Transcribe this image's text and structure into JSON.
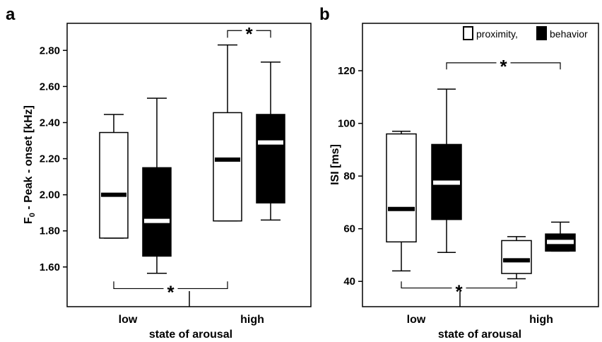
{
  "chart_data": [
    {
      "panel": "a",
      "type": "box",
      "ylabel_main": "F",
      "ylabel_sub": "0",
      "ylabel_rest": " - Peak - onset [kHz]",
      "xlabel": "state of arousal",
      "ylim": [
        1.38,
        2.95
      ],
      "yticks": [
        "1.60",
        "1.80",
        "2.00",
        "2.20",
        "2.40",
        "2.60",
        "2.80"
      ],
      "categories": [
        "low",
        "high"
      ],
      "series": [
        {
          "name": "proximity",
          "fill": "#ffffff",
          "median_color": "#000000",
          "boxes": [
            {
              "category": "low",
              "min": 1.76,
              "q1": 1.76,
              "median": 2.0,
              "q3": 2.345,
              "max": 2.445
            },
            {
              "category": "high",
              "min": 1.855,
              "q1": 1.855,
              "median": 2.195,
              "q3": 2.455,
              "max": 2.83
            }
          ]
        },
        {
          "name": "behavior",
          "fill": "#000000",
          "median_color": "#ffffff",
          "boxes": [
            {
              "category": "low",
              "min": 1.565,
              "q1": 1.66,
              "median": 1.855,
              "q3": 2.15,
              "max": 2.535
            },
            {
              "category": "high",
              "min": 1.86,
              "q1": 1.955,
              "median": 2.29,
              "q3": 2.445,
              "max": 2.735
            }
          ]
        }
      ],
      "significance": [
        {
          "label": "*",
          "from_box": 2,
          "to_box": 3,
          "at": 2.91,
          "tip": 2.87
        },
        {
          "label": "*",
          "from_box": 0,
          "to_box": 2,
          "at": 1.48,
          "tip": 1.52
        }
      ]
    },
    {
      "panel": "b",
      "type": "box",
      "ylabel": "ISI [ms]",
      "xlabel": "state of arousal",
      "ylim": [
        30.4,
        138
      ],
      "yticks": [
        "40",
        "60",
        "80",
        "100",
        "120"
      ],
      "categories": [
        "low",
        "high"
      ],
      "legend": {
        "position": "top-right",
        "items": [
          {
            "label": "proximity,",
            "fill": "#ffffff"
          },
          {
            "label": "behavior",
            "fill": "#000000"
          }
        ]
      },
      "series": [
        {
          "name": "proximity",
          "fill": "#ffffff",
          "median_color": "#000000",
          "boxes": [
            {
              "category": "low",
              "min": 44,
              "q1": 55,
              "median": 67.5,
              "q3": 96,
              "max": 97
            },
            {
              "category": "high",
              "min": 41,
              "q1": 43,
              "median": 48,
              "q3": 55.5,
              "max": 57
            }
          ]
        },
        {
          "name": "behavior",
          "fill": "#000000",
          "median_color": "#ffffff",
          "boxes": [
            {
              "category": "low",
              "min": 51,
              "q1": 63.5,
              "median": 77.5,
              "q3": 92,
              "max": 113
            },
            {
              "category": "high",
              "min": 51.5,
              "q1": 51.5,
              "median": 55,
              "q3": 58,
              "max": 62.5
            }
          ]
        }
      ],
      "significance": [
        {
          "label": "*",
          "from_box": 1,
          "to_box": 3,
          "at": 123,
          "tip": 120.5
        },
        {
          "label": "*",
          "from_box": 0,
          "to_box": 2,
          "at": 37.5,
          "tip": 40
        }
      ]
    }
  ]
}
